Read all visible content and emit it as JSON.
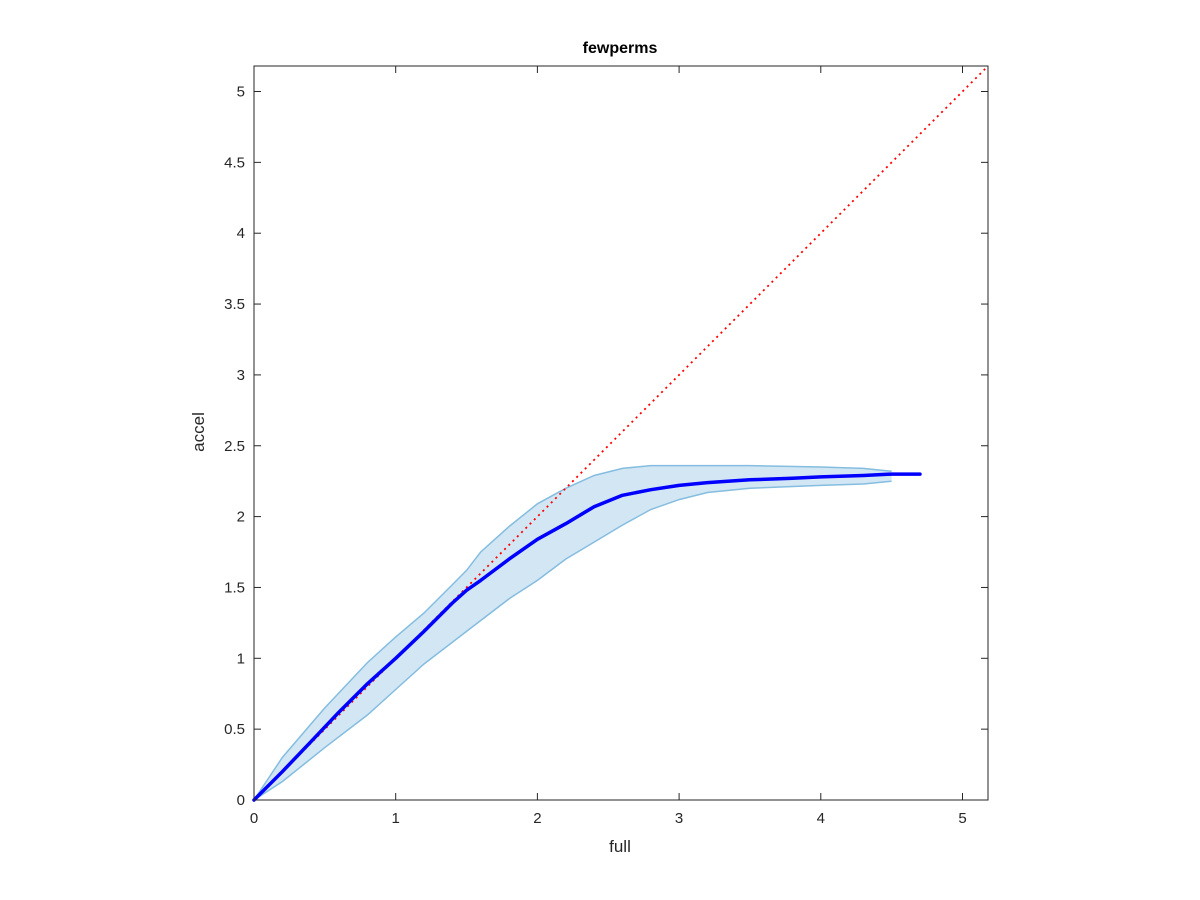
{
  "chart_data": {
    "type": "line",
    "title": "fewperms",
    "xlabel": "full",
    "ylabel": "accel",
    "xlim": [
      0,
      5.18
    ],
    "ylim": [
      0,
      5.18
    ],
    "xticks": [
      0,
      1,
      2,
      3,
      4,
      5
    ],
    "xtick_labels": [
      "0",
      "1",
      "2",
      "3",
      "4",
      "5"
    ],
    "yticks": [
      0,
      0.5,
      1,
      1.5,
      2,
      2.5,
      3,
      3.5,
      4,
      4.5,
      5
    ],
    "ytick_labels": [
      "0",
      "0.5",
      "1",
      "1.5",
      "2",
      "2.5",
      "3",
      "3.5",
      "4",
      "4.5",
      "5"
    ],
    "grid": false,
    "series": [
      {
        "role": "mean",
        "color": "#0000ff",
        "style": "solid",
        "x": [
          0,
          0.2,
          0.4,
          0.6,
          0.8,
          1.0,
          1.2,
          1.4,
          1.5,
          1.6,
          1.8,
          2.0,
          2.2,
          2.4,
          2.6,
          2.8,
          3.0,
          3.2,
          3.5,
          3.8,
          4.0,
          4.3,
          4.5,
          4.7
        ],
        "y": [
          0,
          0.2,
          0.41,
          0.62,
          0.82,
          1.0,
          1.19,
          1.39,
          1.48,
          1.55,
          1.7,
          1.84,
          1.95,
          2.07,
          2.15,
          2.19,
          2.22,
          2.24,
          2.26,
          2.27,
          2.28,
          2.29,
          2.3,
          2.3
        ]
      },
      {
        "role": "upper-bound",
        "color": "#84bde0",
        "style": "solid",
        "x": [
          0,
          0.2,
          0.5,
          0.8,
          1.0,
          1.2,
          1.4,
          1.5,
          1.6,
          1.8,
          2.0,
          2.2,
          2.4,
          2.6,
          2.8,
          3.0,
          3.5,
          4.0,
          4.3,
          4.5
        ],
        "y": [
          0,
          0.3,
          0.65,
          0.97,
          1.15,
          1.32,
          1.52,
          1.62,
          1.75,
          1.93,
          2.09,
          2.2,
          2.29,
          2.34,
          2.36,
          2.36,
          2.36,
          2.35,
          2.34,
          2.32
        ]
      },
      {
        "role": "lower-bound",
        "color": "#84bde0",
        "style": "solid",
        "x": [
          0,
          0.2,
          0.5,
          0.8,
          1.0,
          1.2,
          1.5,
          1.8,
          2.0,
          2.2,
          2.4,
          2.6,
          2.8,
          3.0,
          3.2,
          3.5,
          4.0,
          4.3,
          4.5
        ],
        "y": [
          0,
          0.13,
          0.37,
          0.6,
          0.78,
          0.96,
          1.19,
          1.42,
          1.55,
          1.7,
          1.82,
          1.94,
          2.05,
          2.12,
          2.17,
          2.2,
          2.22,
          2.23,
          2.25
        ]
      },
      {
        "role": "identity",
        "color": "#ff0000",
        "style": "dotted",
        "x": [
          0,
          5.18
        ],
        "y": [
          0,
          5.18
        ]
      }
    ],
    "band_fill": "#d3e6f3"
  }
}
